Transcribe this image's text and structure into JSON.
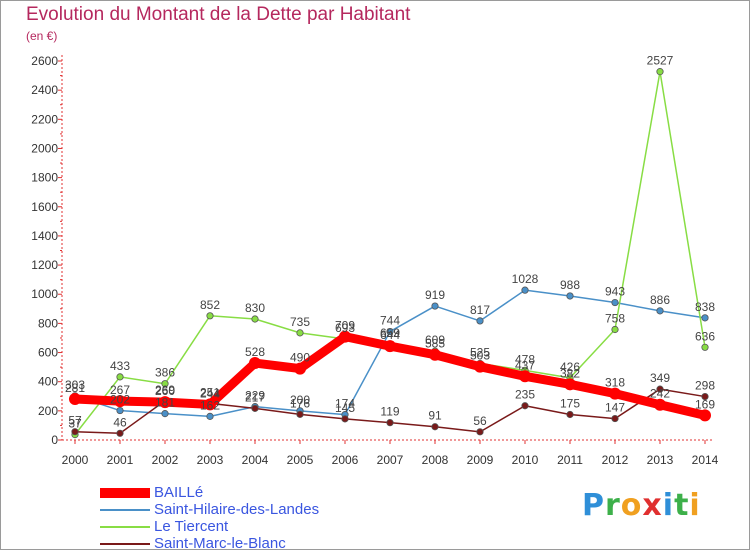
{
  "chart_data": {
    "type": "line",
    "title": "Evolution du Montant de la Dette par Habitant",
    "subtitle": "(en €)",
    "xlabel": "",
    "ylabel": "",
    "x": [
      "2000",
      "2001",
      "2002",
      "2003",
      "2004",
      "2005",
      "2006",
      "2007",
      "2008",
      "2009",
      "2010",
      "2011",
      "2012",
      "2013",
      "2014"
    ],
    "ylim": [
      0,
      2600
    ],
    "yticks": [
      0,
      200,
      400,
      600,
      800,
      1000,
      1200,
      1400,
      1600,
      1800,
      2000,
      2200,
      2400,
      2600
    ],
    "grid": false,
    "series": [
      {
        "name": "BAILLé",
        "color": "#ff0000",
        "values": [
          281,
          267,
          260,
          244,
          528,
          490,
          709,
          644,
          585,
          503,
          437,
          382,
          318,
          242,
          169
        ]
      },
      {
        "name": "Saint-Hilaire-des-Landes",
        "color": "#4a90c8",
        "values": [
          303,
          202,
          181,
          162,
          229,
          200,
          174,
          744,
          919,
          817,
          1028,
          988,
          943,
          886,
          838
        ]
      },
      {
        "name": "Le Tiercent",
        "color": "#88dd44",
        "values": [
          37,
          433,
          386,
          852,
          830,
          735,
          693,
          659,
          609,
          525,
          478,
          426,
          758,
          2527,
          636
        ]
      },
      {
        "name": "Saint-Marc-le-Blanc",
        "color": "#7a1a1a",
        "values": [
          57,
          46,
          269,
          251,
          217,
          176,
          145,
          119,
          91,
          56,
          235,
          175,
          147,
          349,
          298
        ]
      }
    ]
  },
  "logo": {
    "text": "Proxiti"
  }
}
